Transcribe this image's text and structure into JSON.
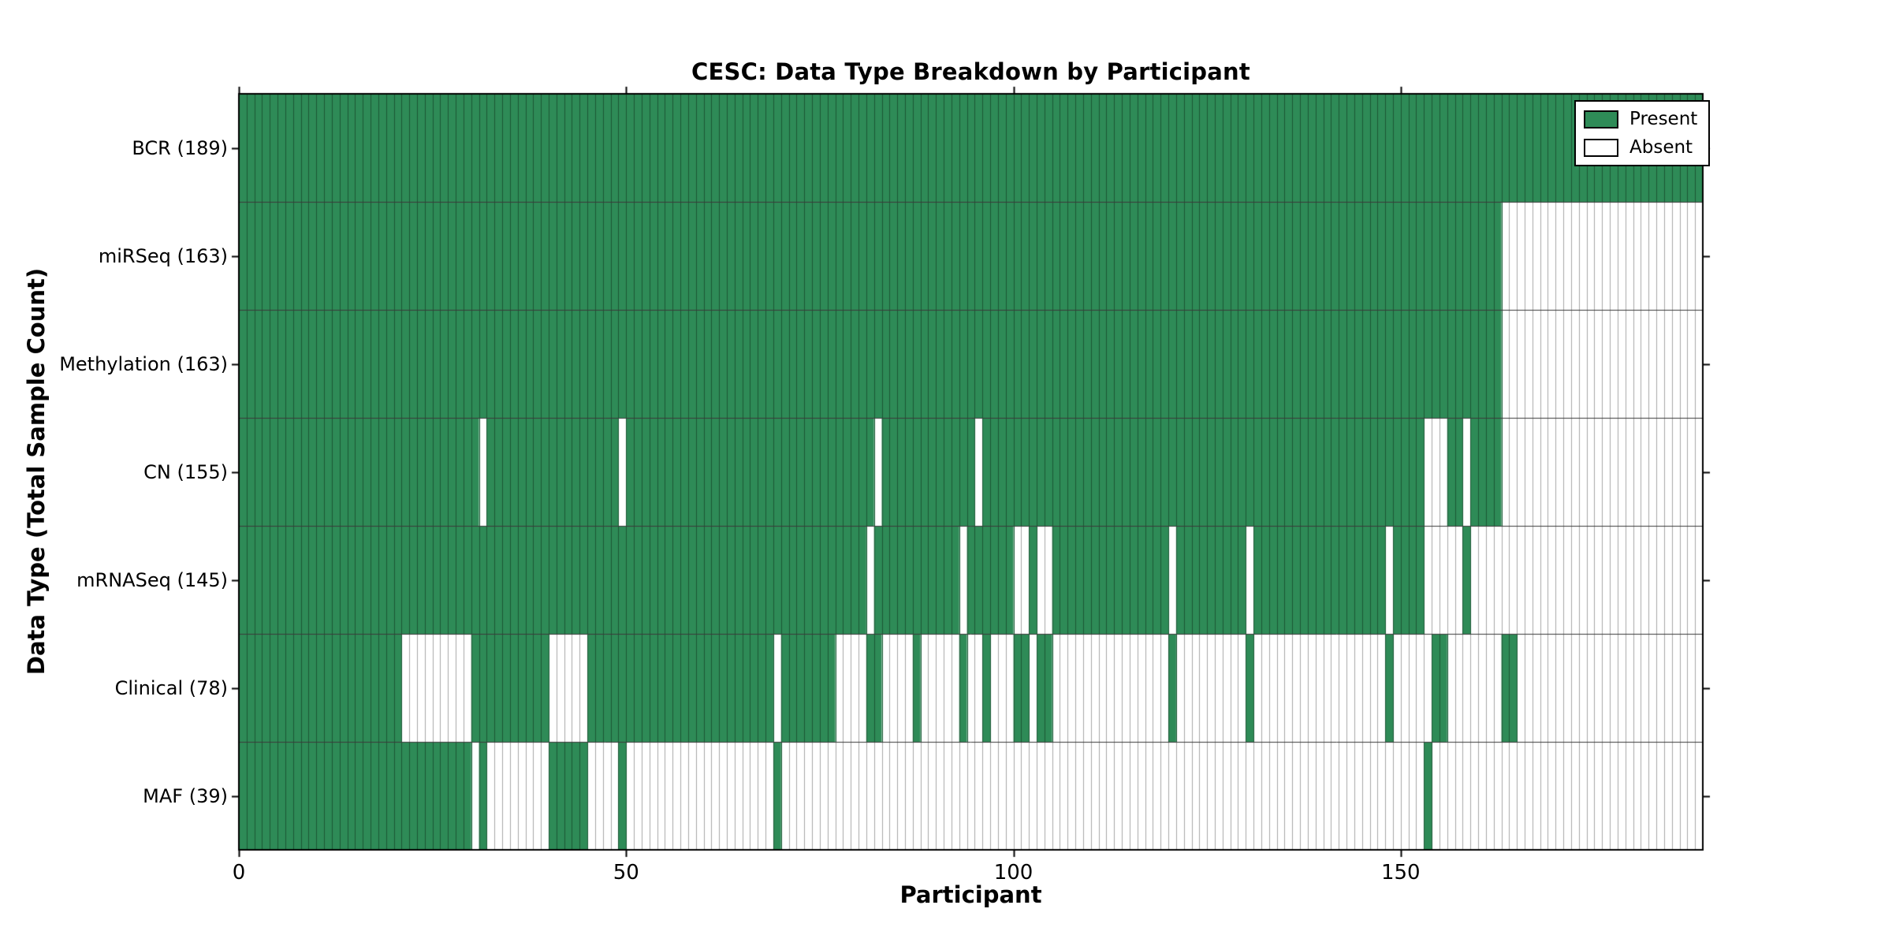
{
  "chart_data": {
    "type": "heatmap",
    "title": "CESC: Data Type Breakdown by Participant",
    "xlabel": "Participant",
    "ylabel": "Data Type (Total Sample Count)",
    "n_participants": 189,
    "x_ticks": [
      0,
      50,
      100,
      150
    ],
    "legend": [
      {
        "label": "Present",
        "color": "#2e8b57"
      },
      {
        "label": "Absent",
        "color": "#ffffff"
      }
    ],
    "colors": {
      "present": "#2e8b57",
      "absent": "#ffffff",
      "cell_border_on_present": "#1c5735",
      "cell_border_on_absent": "#a8a8a8",
      "row_divider": "#3a3a3a",
      "plot_border": "#000000",
      "tick": "#000000",
      "background": "#ffffff"
    },
    "rows": [
      {
        "label": "BCR (189)",
        "data_type": "BCR",
        "count": 189,
        "present_segments": [
          [
            0,
            188
          ]
        ]
      },
      {
        "label": "miRSeq (163)",
        "data_type": "miRSeq",
        "count": 163,
        "present_segments": [
          [
            0,
            162
          ]
        ]
      },
      {
        "label": "Methylation (163)",
        "data_type": "Methylation",
        "count": 163,
        "present_segments": [
          [
            0,
            162
          ]
        ]
      },
      {
        "label": "CN (155)",
        "data_type": "CN",
        "count": 155,
        "present_segments": [
          [
            0,
            30
          ],
          [
            32,
            48
          ],
          [
            50,
            81
          ],
          [
            83,
            94
          ],
          [
            96,
            152
          ],
          [
            156,
            157
          ],
          [
            159,
            162
          ]
        ]
      },
      {
        "label": "mRNASeq (145)",
        "data_type": "mRNASeq",
        "count": 145,
        "present_segments": [
          [
            0,
            80
          ],
          [
            82,
            92
          ],
          [
            94,
            99
          ],
          [
            102,
            102
          ],
          [
            105,
            119
          ],
          [
            121,
            129
          ],
          [
            131,
            147
          ],
          [
            149,
            152
          ],
          [
            158,
            158
          ]
        ]
      },
      {
        "label": "Clinical (78)",
        "data_type": "Clinical",
        "count": 78,
        "present_segments": [
          [
            0,
            20
          ],
          [
            30,
            39
          ],
          [
            45,
            68
          ],
          [
            70,
            76
          ],
          [
            81,
            82
          ],
          [
            87,
            87
          ],
          [
            93,
            93
          ],
          [
            96,
            96
          ],
          [
            100,
            101
          ],
          [
            103,
            104
          ],
          [
            120,
            120
          ],
          [
            130,
            130
          ],
          [
            148,
            148
          ],
          [
            154,
            155
          ],
          [
            163,
            164
          ]
        ]
      },
      {
        "label": "MAF (39)",
        "data_type": "MAF",
        "count": 39,
        "present_segments": [
          [
            0,
            29
          ],
          [
            31,
            31
          ],
          [
            40,
            44
          ],
          [
            49,
            49
          ],
          [
            69,
            69
          ],
          [
            153,
            153
          ]
        ]
      }
    ]
  }
}
